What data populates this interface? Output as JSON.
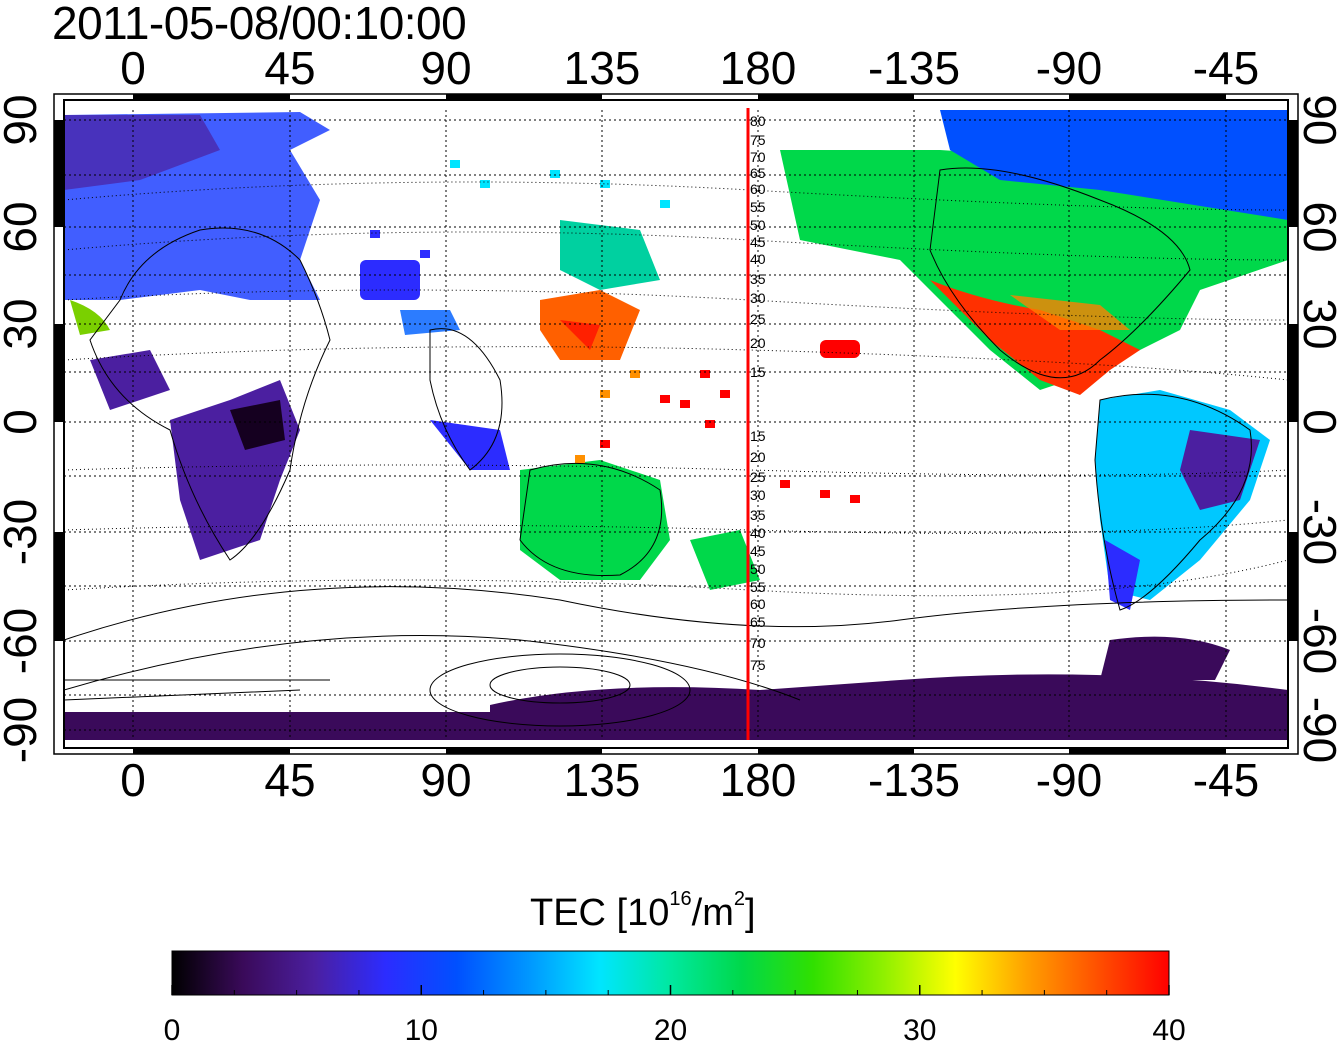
{
  "title": "2011-05-08/00:10:00",
  "map": {
    "top_lon_ticks": [
      "0",
      "45",
      "90",
      "135",
      "180",
      "-135",
      "-90",
      "-45"
    ],
    "bottom_lon_ticks": [
      "0",
      "45",
      "90",
      "135",
      "180",
      "-135",
      "-90",
      "-45"
    ],
    "left_lat_ticks": [
      "90",
      "60",
      "30",
      "0",
      "-30",
      "-60",
      "-90"
    ],
    "right_lat_ticks": [
      "90",
      "60",
      "30",
      "0",
      "-30",
      "-60",
      "-90"
    ],
    "meridian_line_color": "#ff0000",
    "meridian_labels_north": [
      "80",
      "75",
      "70",
      "65",
      "60",
      "55",
      "50",
      "45",
      "40",
      "35",
      "30",
      "25",
      "20",
      "15"
    ],
    "meridian_labels_south": [
      "15",
      "20",
      "25",
      "30",
      "35",
      "40",
      "45",
      "50",
      "55",
      "60",
      "65",
      "70",
      "75"
    ]
  },
  "colorbar": {
    "title_main": "TEC  [10",
    "title_sup1": "16",
    "title_mid": "/m",
    "title_sup2": "2",
    "title_end": "]",
    "tick_labels": [
      "0",
      "10",
      "20",
      "30",
      "40"
    ],
    "min": 0,
    "max": 40,
    "colormap": [
      "#000000",
      "#3a0a5a",
      "#4b1fa0",
      "#2c2cff",
      "#0050ff",
      "#0096ff",
      "#00e5ff",
      "#00e8a0",
      "#00d84a",
      "#30e000",
      "#90f000",
      "#ffff00",
      "#ffa000",
      "#ff5000",
      "#ff0000"
    ]
  }
}
